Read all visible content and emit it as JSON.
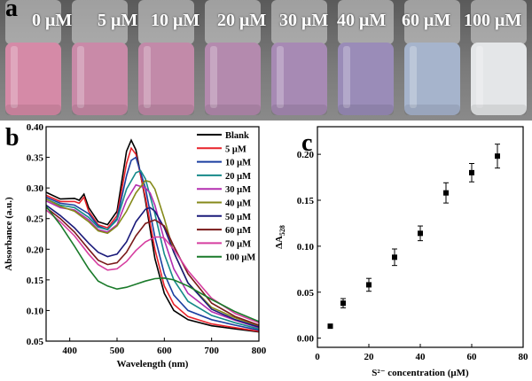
{
  "panels": {
    "a": "a",
    "b": "b",
    "c": "c"
  },
  "photo": {
    "labels": [
      "0 μM",
      "5 μM",
      "10 μM",
      "20 μM",
      "30 μM",
      "40 μM",
      "60 μM",
      "100 μM"
    ],
    "vial_colors": [
      "#d58aa7",
      "#c98aa8",
      "#c28aa9",
      "#b48aae",
      "#a78ab4",
      "#9a8cb8",
      "#a6b4cc",
      "#e4e6e8"
    ]
  },
  "chart_data": [
    {
      "type": "line",
      "xlabel": "Wavelength (nm)",
      "ylabel": "Absorbance (a.u.)",
      "xlim": [
        350,
        800
      ],
      "ylim": [
        0.05,
        0.4
      ],
      "xticks": [
        400,
        500,
        600,
        700,
        800
      ],
      "yticks": [
        0.05,
        0.1,
        0.15,
        0.2,
        0.25,
        0.3,
        0.35,
        0.4
      ],
      "legend_position": "top-right",
      "series": [
        {
          "name": "Blank",
          "color": "#000000",
          "x": [
            350,
            380,
            410,
            420,
            430,
            440,
            460,
            480,
            500,
            520,
            530,
            540,
            560,
            580,
            600,
            620,
            650,
            700,
            750,
            800
          ],
          "y": [
            0.293,
            0.282,
            0.283,
            0.28,
            0.29,
            0.268,
            0.245,
            0.24,
            0.262,
            0.36,
            0.378,
            0.362,
            0.28,
            0.185,
            0.128,
            0.1,
            0.085,
            0.075,
            0.07,
            0.065
          ]
        },
        {
          "name": "5 μM",
          "color": "#e8222a",
          "x": [
            350,
            380,
            410,
            420,
            430,
            440,
            460,
            480,
            500,
            520,
            530,
            540,
            560,
            580,
            600,
            620,
            650,
            700,
            750,
            800
          ],
          "y": [
            0.288,
            0.278,
            0.278,
            0.275,
            0.285,
            0.262,
            0.24,
            0.235,
            0.255,
            0.34,
            0.365,
            0.355,
            0.285,
            0.2,
            0.14,
            0.11,
            0.09,
            0.078,
            0.072,
            0.066
          ]
        },
        {
          "name": "10 μM",
          "color": "#1b3fa0",
          "x": [
            350,
            380,
            410,
            440,
            460,
            480,
            500,
            520,
            530,
            540,
            560,
            580,
            600,
            620,
            650,
            700,
            750,
            800
          ],
          "y": [
            0.285,
            0.275,
            0.272,
            0.258,
            0.238,
            0.232,
            0.25,
            0.32,
            0.345,
            0.35,
            0.3,
            0.22,
            0.16,
            0.125,
            0.1,
            0.085,
            0.076,
            0.068
          ]
        },
        {
          "name": "20 μM",
          "color": "#168a8a",
          "x": [
            350,
            380,
            410,
            440,
            460,
            480,
            500,
            520,
            540,
            550,
            560,
            580,
            600,
            620,
            650,
            700,
            750,
            800
          ],
          "y": [
            0.282,
            0.272,
            0.268,
            0.252,
            0.236,
            0.232,
            0.248,
            0.298,
            0.325,
            0.328,
            0.315,
            0.258,
            0.192,
            0.15,
            0.115,
            0.092,
            0.08,
            0.07
          ]
        },
        {
          "name": "30 μM",
          "color": "#b32fb0",
          "x": [
            350,
            380,
            410,
            440,
            460,
            480,
            500,
            520,
            540,
            560,
            570,
            580,
            600,
            620,
            650,
            700,
            750,
            800
          ],
          "y": [
            0.279,
            0.268,
            0.264,
            0.248,
            0.232,
            0.228,
            0.24,
            0.28,
            0.305,
            0.3,
            0.292,
            0.272,
            0.215,
            0.168,
            0.128,
            0.098,
            0.084,
            0.072
          ]
        },
        {
          "name": "40 μM",
          "color": "#858a1a",
          "x": [
            350,
            380,
            410,
            440,
            460,
            480,
            500,
            520,
            540,
            560,
            570,
            580,
            600,
            620,
            650,
            700,
            750,
            800
          ],
          "y": [
            0.282,
            0.27,
            0.262,
            0.245,
            0.23,
            0.226,
            0.238,
            0.262,
            0.292,
            0.312,
            0.31,
            0.298,
            0.25,
            0.195,
            0.145,
            0.105,
            0.088,
            0.075
          ]
        },
        {
          "name": "50 μM",
          "color": "#1a1a7a",
          "x": [
            350,
            380,
            410,
            440,
            460,
            480,
            500,
            520,
            540,
            560,
            570,
            580,
            600,
            620,
            650,
            700,
            750,
            800
          ],
          "y": [
            0.272,
            0.255,
            0.235,
            0.21,
            0.195,
            0.188,
            0.192,
            0.212,
            0.245,
            0.265,
            0.268,
            0.262,
            0.235,
            0.195,
            0.145,
            0.102,
            0.085,
            0.073
          ]
        },
        {
          "name": "60 μM",
          "color": "#7a1a1a",
          "x": [
            350,
            380,
            410,
            440,
            460,
            480,
            500,
            520,
            540,
            560,
            580,
            600,
            620,
            650,
            700,
            750,
            800
          ],
          "y": [
            0.268,
            0.25,
            0.228,
            0.2,
            0.182,
            0.175,
            0.178,
            0.195,
            0.222,
            0.242,
            0.248,
            0.238,
            0.205,
            0.16,
            0.112,
            0.09,
            0.076
          ]
        },
        {
          "name": "70 μM",
          "color": "#d63ea0",
          "x": [
            350,
            380,
            410,
            440,
            460,
            480,
            500,
            520,
            540,
            560,
            580,
            590,
            600,
            620,
            650,
            700,
            750,
            800
          ],
          "y": [
            0.264,
            0.245,
            0.222,
            0.192,
            0.175,
            0.166,
            0.168,
            0.18,
            0.198,
            0.212,
            0.22,
            0.22,
            0.218,
            0.2,
            0.165,
            0.12,
            0.095,
            0.08
          ]
        },
        {
          "name": "100 μM",
          "color": "#1a7a2a",
          "x": [
            350,
            380,
            410,
            440,
            460,
            480,
            500,
            520,
            540,
            560,
            580,
            600,
            620,
            650,
            700,
            750,
            800
          ],
          "y": [
            0.27,
            0.24,
            0.205,
            0.168,
            0.148,
            0.14,
            0.135,
            0.138,
            0.143,
            0.148,
            0.152,
            0.153,
            0.15,
            0.14,
            0.118,
            0.098,
            0.082
          ]
        }
      ]
    },
    {
      "type": "scatter",
      "xlabel": "S²⁻ concentration (μM)",
      "ylabel": "ΔA528",
      "xlim": [
        0,
        80
      ],
      "ylim": [
        -0.01,
        0.23
      ],
      "xticks": [
        0,
        20,
        40,
        60,
        80
      ],
      "yticks": [
        0.0,
        0.05,
        0.1,
        0.15,
        0.2
      ],
      "series": [
        {
          "x": [
            5,
            10,
            20,
            30,
            40,
            50,
            60,
            70
          ],
          "y": [
            0.013,
            0.038,
            0.058,
            0.088,
            0.114,
            0.158,
            0.18,
            0.198
          ],
          "err": [
            0.001,
            0.005,
            0.007,
            0.009,
            0.008,
            0.011,
            0.01,
            0.013
          ]
        }
      ]
    }
  ]
}
